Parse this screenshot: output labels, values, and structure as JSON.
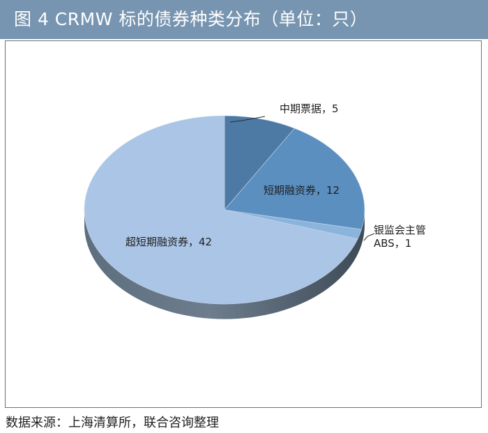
{
  "header": {
    "title": "图 4 CRMW 标的债券种类分布（单位：只）"
  },
  "chart_data": {
    "type": "pie",
    "title": "图 4 CRMW 标的债券种类分布（单位：只）",
    "slices": [
      {
        "name": "中期票据",
        "value": 5,
        "label": "中期票据，5",
        "color": "#4c7aa4"
      },
      {
        "name": "短期融资券",
        "value": 12,
        "label": "短期融资券，12",
        "color": "#5b8fc0"
      },
      {
        "name": "银监会主管ABS",
        "value": 1,
        "label_lines": [
          "银监会主管",
          "ABS，1"
        ],
        "color": "#8ab4dc"
      },
      {
        "name": "超短期融资券",
        "value": 42,
        "label": "超短期融资券，42",
        "color": "#abc5e6"
      }
    ],
    "legend": "none",
    "style": "3d-tilted"
  },
  "footer": {
    "source": "数据来源：上海清算所，联合咨询整理"
  }
}
